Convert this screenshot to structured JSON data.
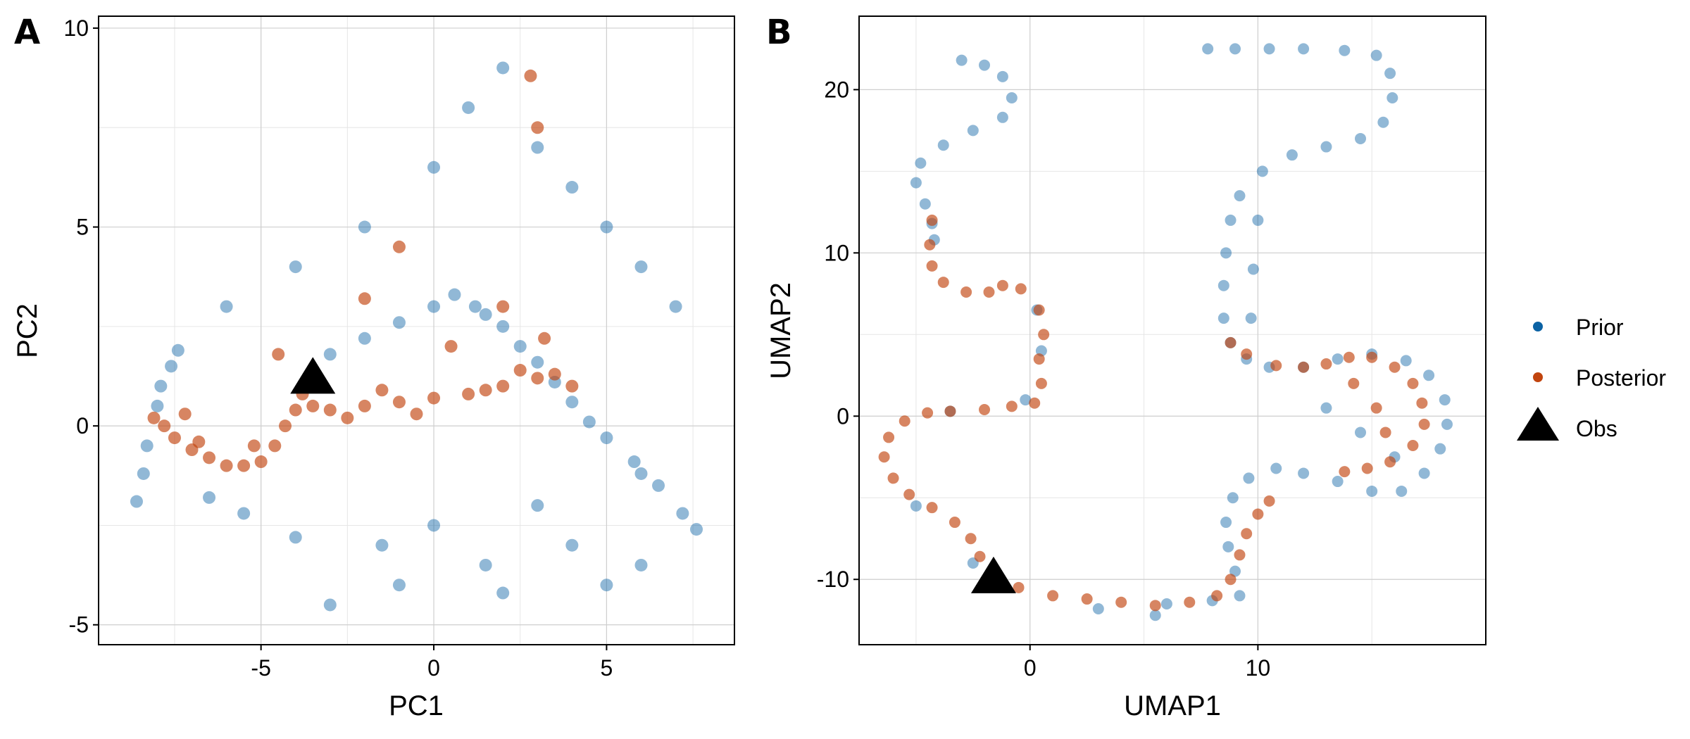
{
  "chart_data": [
    {
      "panel_label": "A",
      "type": "scatter",
      "xlabel": "PC1",
      "ylabel": "PC2",
      "xlim": [
        -9.7,
        8.7
      ],
      "ylim": [
        -5.5,
        10.3
      ],
      "xticks": [
        -5,
        0,
        5
      ],
      "yticks": [
        -5,
        0,
        5,
        10
      ],
      "tick_labels_x": [
        "-5",
        "0",
        "5"
      ],
      "tick_labels_y": [
        "-5",
        "0",
        "5",
        "10"
      ],
      "grid": true,
      "series": [
        {
          "name": "Prior",
          "color": "#0b62a4",
          "points": [
            [
              -8.6,
              -1.9
            ],
            [
              -8.3,
              -0.5
            ],
            [
              -8.0,
              0.5
            ],
            [
              -7.6,
              1.5
            ],
            [
              -7.4,
              1.9
            ],
            [
              -7.9,
              1.0
            ],
            [
              -8.4,
              -1.2
            ],
            [
              -6.5,
              -1.8
            ],
            [
              -5.5,
              -2.2
            ],
            [
              -4.0,
              -2.8
            ],
            [
              -3.0,
              1.8
            ],
            [
              -2.0,
              2.2
            ],
            [
              -1.0,
              2.6
            ],
            [
              0.0,
              3.0
            ],
            [
              0.6,
              3.3
            ],
            [
              1.2,
              3.0
            ],
            [
              2.0,
              2.5
            ],
            [
              3.0,
              1.6
            ],
            [
              4.0,
              0.6
            ],
            [
              5.0,
              -0.3
            ],
            [
              5.8,
              -0.9
            ],
            [
              6.5,
              -1.5
            ],
            [
              7.2,
              -2.2
            ],
            [
              7.6,
              -2.6
            ],
            [
              6.0,
              -1.2
            ],
            [
              4.5,
              0.1
            ],
            [
              3.5,
              1.1
            ],
            [
              2.5,
              2.0
            ],
            [
              1.5,
              2.8
            ],
            [
              -1.5,
              -3.0
            ],
            [
              0.0,
              -2.5
            ],
            [
              1.5,
              -3.5
            ],
            [
              3.0,
              -2.0
            ],
            [
              4.0,
              -3.0
            ],
            [
              5.0,
              -4.0
            ],
            [
              -6.0,
              3.0
            ],
            [
              -4.0,
              4.0
            ],
            [
              -2.0,
              5.0
            ],
            [
              0.0,
              6.5
            ],
            [
              1.0,
              8.0
            ],
            [
              2.0,
              9.0
            ],
            [
              3.0,
              7.0
            ],
            [
              4.0,
              6.0
            ],
            [
              5.0,
              5.0
            ],
            [
              6.0,
              4.0
            ],
            [
              7.0,
              3.0
            ],
            [
              -3.0,
              -4.5
            ],
            [
              -1.0,
              -4.0
            ],
            [
              2.0,
              -4.2
            ],
            [
              6.0,
              -3.5
            ]
          ]
        },
        {
          "name": "Posterior",
          "color": "#c1440e",
          "points": [
            [
              -8.1,
              0.2
            ],
            [
              -7.8,
              0.0
            ],
            [
              -7.5,
              -0.3
            ],
            [
              -7.0,
              -0.6
            ],
            [
              -6.5,
              -0.8
            ],
            [
              -6.0,
              -1.0
            ],
            [
              -5.5,
              -1.0
            ],
            [
              -5.0,
              -0.9
            ],
            [
              -4.6,
              -0.5
            ],
            [
              -4.3,
              0.0
            ],
            [
              -4.0,
              0.4
            ],
            [
              -3.5,
              0.5
            ],
            [
              -3.0,
              0.4
            ],
            [
              -2.0,
              0.5
            ],
            [
              -1.0,
              0.6
            ],
            [
              0.0,
              0.7
            ],
            [
              1.0,
              0.8
            ],
            [
              2.0,
              1.0
            ],
            [
              3.0,
              1.2
            ],
            [
              3.5,
              1.3
            ],
            [
              4.0,
              1.0
            ],
            [
              2.5,
              1.4
            ],
            [
              1.5,
              0.9
            ],
            [
              -0.5,
              0.3
            ],
            [
              -1.5,
              0.9
            ],
            [
              -2.5,
              0.2
            ],
            [
              -3.8,
              0.8
            ],
            [
              -6.8,
              -0.4
            ],
            [
              -7.2,
              0.3
            ],
            [
              -5.2,
              -0.5
            ],
            [
              2.0,
              3.0
            ],
            [
              3.0,
              7.5
            ],
            [
              2.8,
              8.8
            ],
            [
              -1.0,
              4.5
            ],
            [
              0.5,
              2.0
            ],
            [
              3.2,
              2.2
            ],
            [
              -4.5,
              1.8
            ],
            [
              -2.0,
              3.2
            ]
          ]
        },
        {
          "name": "Obs",
          "color": "#000000",
          "marker": "triangle",
          "points": [
            [
              -3.5,
              1.2
            ]
          ]
        }
      ]
    },
    {
      "panel_label": "B",
      "type": "scatter",
      "xlabel": "UMAP1",
      "ylabel": "UMAP2",
      "xlim": [
        -7.5,
        20.0
      ],
      "ylim": [
        -14.0,
        24.5
      ],
      "xticks": [
        0,
        10
      ],
      "yticks": [
        -10,
        0,
        10,
        20
      ],
      "tick_labels_x": [
        "0",
        "10"
      ],
      "tick_labels_y": [
        "-10",
        "0",
        "10",
        "20"
      ],
      "grid": true,
      "legend": {
        "placement": "right"
      },
      "series": [
        {
          "name": "Prior",
          "color": "#0b62a4",
          "points": [
            [
              -3.0,
              21.8
            ],
            [
              -2.0,
              21.5
            ],
            [
              -1.2,
              20.8
            ],
            [
              -0.8,
              19.5
            ],
            [
              -1.2,
              18.3
            ],
            [
              -2.5,
              17.5
            ],
            [
              -3.8,
              16.6
            ],
            [
              -4.8,
              15.5
            ],
            [
              -5.0,
              14.3
            ],
            [
              -4.6,
              13.0
            ],
            [
              -4.3,
              11.8
            ],
            [
              -4.2,
              10.8
            ],
            [
              0.3,
              6.5
            ],
            [
              0.5,
              4.0
            ],
            [
              -0.2,
              1.0
            ],
            [
              -3.5,
              0.3
            ],
            [
              -5.0,
              -5.5
            ],
            [
              -2.5,
              -9.0
            ],
            [
              7.8,
              22.5
            ],
            [
              9.0,
              22.5
            ],
            [
              10.5,
              22.5
            ],
            [
              12.0,
              22.5
            ],
            [
              13.8,
              22.4
            ],
            [
              15.2,
              22.1
            ],
            [
              15.8,
              21.0
            ],
            [
              15.9,
              19.5
            ],
            [
              15.5,
              18.0
            ],
            [
              14.5,
              17.0
            ],
            [
              13.0,
              16.5
            ],
            [
              11.5,
              16.0
            ],
            [
              10.2,
              15.0
            ],
            [
              9.2,
              13.5
            ],
            [
              8.8,
              12.0
            ],
            [
              8.6,
              10.0
            ],
            [
              8.5,
              8.0
            ],
            [
              8.5,
              6.0
            ],
            [
              8.8,
              4.5
            ],
            [
              9.5,
              3.5
            ],
            [
              10.5,
              3.0
            ],
            [
              12.0,
              3.0
            ],
            [
              13.5,
              3.5
            ],
            [
              15.0,
              3.8
            ],
            [
              16.5,
              3.4
            ],
            [
              17.5,
              2.5
            ],
            [
              18.2,
              1.0
            ],
            [
              18.3,
              -0.5
            ],
            [
              18.0,
              -2.0
            ],
            [
              17.3,
              -3.5
            ],
            [
              16.3,
              -4.6
            ],
            [
              15.0,
              -4.6
            ],
            [
              13.5,
              -4.0
            ],
            [
              12.0,
              -3.5
            ],
            [
              10.8,
              -3.2
            ],
            [
              9.6,
              -3.8
            ],
            [
              8.9,
              -5.0
            ],
            [
              8.6,
              -6.5
            ],
            [
              8.7,
              -8.0
            ],
            [
              9.0,
              -9.5
            ],
            [
              9.2,
              -11.0
            ],
            [
              8.0,
              -11.3
            ],
            [
              6.0,
              -11.5
            ],
            [
              3.0,
              -11.8
            ],
            [
              5.5,
              -12.2
            ],
            [
              13.0,
              0.5
            ],
            [
              14.5,
              -1.0
            ],
            [
              16.0,
              -2.5
            ],
            [
              9.8,
              9.0
            ],
            [
              10.0,
              12.0
            ],
            [
              9.7,
              6.0
            ]
          ]
        },
        {
          "name": "Posterior",
          "color": "#c1440e",
          "points": [
            [
              -4.3,
              12.0
            ],
            [
              -4.4,
              10.5
            ],
            [
              -4.3,
              9.2
            ],
            [
              -3.8,
              8.2
            ],
            [
              -2.8,
              7.6
            ],
            [
              -1.8,
              7.6
            ],
            [
              -1.2,
              8.0
            ],
            [
              -0.4,
              7.8
            ],
            [
              0.4,
              6.5
            ],
            [
              0.6,
              5.0
            ],
            [
              0.4,
              3.5
            ],
            [
              0.5,
              2.0
            ],
            [
              0.2,
              0.8
            ],
            [
              -0.8,
              0.6
            ],
            [
              -2.0,
              0.4
            ],
            [
              -3.5,
              0.3
            ],
            [
              -4.5,
              0.2
            ],
            [
              -5.5,
              -0.3
            ],
            [
              -6.2,
              -1.3
            ],
            [
              -6.4,
              -2.5
            ],
            [
              -6.0,
              -3.8
            ],
            [
              -5.3,
              -4.8
            ],
            [
              -4.3,
              -5.6
            ],
            [
              -3.3,
              -6.5
            ],
            [
              -2.6,
              -7.5
            ],
            [
              -2.2,
              -8.6
            ],
            [
              -1.5,
              -9.5
            ],
            [
              -0.5,
              -10.5
            ],
            [
              1.0,
              -11.0
            ],
            [
              2.5,
              -11.2
            ],
            [
              4.0,
              -11.4
            ],
            [
              5.5,
              -11.6
            ],
            [
              7.0,
              -11.4
            ],
            [
              8.2,
              -11.0
            ],
            [
              8.8,
              -10.0
            ],
            [
              9.2,
              -8.5
            ],
            [
              9.5,
              -7.2
            ],
            [
              10.0,
              -6.0
            ],
            [
              10.5,
              -5.2
            ],
            [
              8.8,
              4.5
            ],
            [
              9.5,
              3.8
            ],
            [
              10.8,
              3.1
            ],
            [
              12.0,
              3.0
            ],
            [
              13.0,
              3.2
            ],
            [
              14.0,
              3.6
            ],
            [
              15.0,
              3.6
            ],
            [
              16.0,
              3.0
            ],
            [
              16.8,
              2.0
            ],
            [
              17.2,
              0.8
            ],
            [
              17.3,
              -0.5
            ],
            [
              16.8,
              -1.8
            ],
            [
              15.8,
              -2.8
            ],
            [
              14.8,
              -3.2
            ],
            [
              13.8,
              -3.4
            ],
            [
              14.2,
              2.0
            ],
            [
              15.2,
              0.5
            ],
            [
              15.6,
              -1.0
            ]
          ]
        },
        {
          "name": "Obs",
          "color": "#000000",
          "marker": "triangle",
          "points": [
            [
              -1.6,
              -9.9
            ]
          ]
        }
      ]
    }
  ]
}
